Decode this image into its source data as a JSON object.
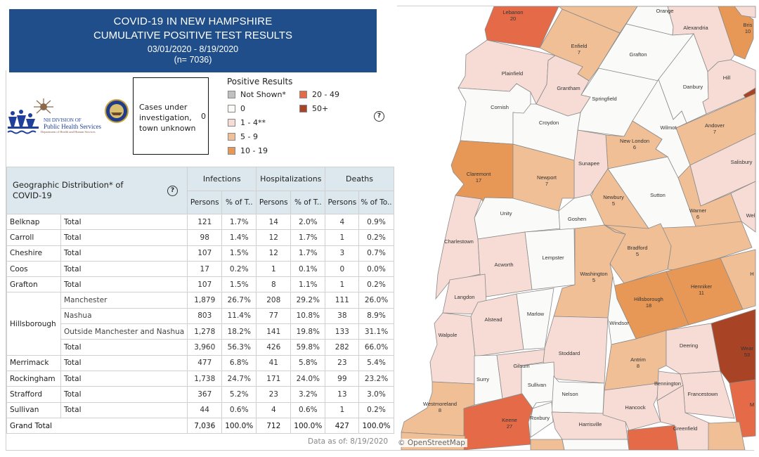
{
  "title": {
    "line1": "COVID-19 IN NEW HAMPSHIRE",
    "line2": "CUMULATIVE POSITIVE TEST RESULTS",
    "dates": "03/01/2020 - 8/19/2020",
    "n": "(n= 7036)",
    "background": "#1f4e8a"
  },
  "logo": {
    "line1": "NH DIVISION OF",
    "line2": "Public Health Services",
    "line3": "Department of Health and Human Services"
  },
  "investigation": {
    "label": "Cases under investigation, town unknown",
    "value": "0"
  },
  "legend": {
    "title": "Positive Results",
    "items": [
      {
        "label": "Not Shown*",
        "color": "#c0c0c0"
      },
      {
        "label": "0",
        "color": "#fafaf8"
      },
      {
        "label": "1 - 4**",
        "color": "#f7dcd5"
      },
      {
        "label": "5 - 9",
        "color": "#f0bf96"
      },
      {
        "label": "10 - 19",
        "color": "#e89856"
      },
      {
        "label": "20 - 49",
        "color": "#e56b48"
      },
      {
        "label": "50+",
        "color": "#a84326"
      }
    ]
  },
  "help_icon": "?",
  "table": {
    "title": "Geographic Distribution* of COVID-19",
    "groups": [
      "Infections",
      "Hospitalizations",
      "Deaths"
    ],
    "subheaders": [
      "Persons",
      "% of T..",
      "Persons",
      "% of T..",
      "Persons",
      "% of To.."
    ],
    "rows": [
      {
        "county": "Belknap",
        "sub": "Total",
        "v": [
          "121",
          "1.7%",
          "14",
          "2.0%",
          "4",
          "0.9%"
        ]
      },
      {
        "county": "Carroll",
        "sub": "Total",
        "v": [
          "98",
          "1.4%",
          "12",
          "1.7%",
          "1",
          "0.2%"
        ]
      },
      {
        "county": "Cheshire",
        "sub": "Total",
        "v": [
          "107",
          "1.5%",
          "12",
          "1.7%",
          "3",
          "0.7%"
        ]
      },
      {
        "county": "Coos",
        "sub": "Total",
        "v": [
          "17",
          "0.2%",
          "1",
          "0.1%",
          "0",
          "0.0%"
        ]
      },
      {
        "county": "Grafton",
        "sub": "Total",
        "v": [
          "107",
          "1.5%",
          "8",
          "1.1%",
          "1",
          "0.2%"
        ]
      },
      {
        "county": "Hillsborough",
        "span": 4,
        "sub": "Manchester",
        "v": [
          "1,879",
          "26.7%",
          "208",
          "29.2%",
          "111",
          "26.0%"
        ]
      },
      {
        "sub": "Nashua",
        "v": [
          "803",
          "11.4%",
          "77",
          "10.8%",
          "38",
          "8.9%"
        ]
      },
      {
        "sub": "Outside Manchester and Nashua",
        "v": [
          "1,278",
          "18.2%",
          "141",
          "19.8%",
          "133",
          "31.1%"
        ]
      },
      {
        "sub": "Total",
        "v": [
          "3,960",
          "56.3%",
          "426",
          "59.8%",
          "282",
          "66.0%"
        ]
      },
      {
        "county": "Merrimack",
        "sub": "Total",
        "v": [
          "477",
          "6.8%",
          "41",
          "5.8%",
          "23",
          "5.4%"
        ]
      },
      {
        "county": "Rockingham",
        "sub": "Total",
        "v": [
          "1,738",
          "24.7%",
          "171",
          "24.0%",
          "99",
          "23.2%"
        ]
      },
      {
        "county": "Strafford",
        "sub": "Total",
        "v": [
          "367",
          "5.2%",
          "23",
          "3.2%",
          "13",
          "3.0%"
        ]
      },
      {
        "county": "Sullivan",
        "sub": "Total",
        "v": [
          "44",
          "0.6%",
          "4",
          "0.6%",
          "1",
          "0.2%"
        ]
      }
    ],
    "grand_total": {
      "label": "Grand Total",
      "v": [
        "7,036",
        "100.0%",
        "712",
        "100.0%",
        "427",
        "100.0%"
      ]
    }
  },
  "data_as_of": "Data as of:  8/19/2020",
  "map": {
    "attribution": "© OpenStreetMap",
    "towns": [
      {
        "name": "Lebanon",
        "count": "20",
        "bin": 5
      },
      {
        "name": "",
        "bin": 3,
        "id": "canaan"
      },
      {
        "name": "Enfield",
        "count": "7",
        "bin": 3
      },
      {
        "name": "Orange",
        "bin": 1
      },
      {
        "name": "Alexandria",
        "bin": 2
      },
      {
        "name": "Bris",
        "count": "10",
        "bin": 4
      },
      {
        "name": "",
        "bin": 2,
        "id": "ne"
      },
      {
        "name": "Grafton",
        "bin": 1
      },
      {
        "name": "Plainfield",
        "bin": 2
      },
      {
        "name": "Grantham",
        "bin": 2
      },
      {
        "name": "Springfield",
        "bin": 1
      },
      {
        "name": "Danbury",
        "bin": 1
      },
      {
        "name": "Hill",
        "bin": 2
      },
      {
        "name": "",
        "bin": 6,
        "id": "dark1"
      },
      {
        "name": "Wilmot",
        "bin": 1
      },
      {
        "name": "Andover",
        "count": "7",
        "bin": 3
      },
      {
        "name": "Salisbury",
        "bin": 2
      },
      {
        "name": "",
        "bin": 3,
        "id": "mid"
      },
      {
        "name": "Warner",
        "count": "6",
        "bin": 3
      },
      {
        "name": "Wel",
        "bin": 2
      },
      {
        "name": "New London",
        "count": "6",
        "bin": 3
      },
      {
        "name": "Sutton",
        "bin": 1
      },
      {
        "name": "Sunapee",
        "bin": 2
      },
      {
        "name": "Newbury",
        "count": "5",
        "bin": 3
      },
      {
        "name": "Cornish",
        "bin": 1
      },
      {
        "name": "Croydon",
        "bin": 1
      },
      {
        "name": "Claremont",
        "count": "17",
        "bin": 4
      },
      {
        "name": "Newport",
        "count": "7",
        "bin": 3
      },
      {
        "name": "Unity",
        "bin": 1
      },
      {
        "name": "Goshen",
        "bin": 1
      },
      {
        "name": "Charlestown",
        "bin": 2
      },
      {
        "name": "Acworth",
        "bin": 2
      },
      {
        "name": "Lempster",
        "bin": 1
      },
      {
        "name": "Washington",
        "count": "5",
        "bin": 3
      },
      {
        "name": "Bradford",
        "count": "5",
        "bin": 3
      },
      {
        "name": "Hillsborough",
        "count": "18",
        "bin": 4
      },
      {
        "name": "Henniker",
        "count": "11",
        "bin": 4
      },
      {
        "name": "H",
        "bin": 3
      },
      {
        "name": "Langdon",
        "bin": 2
      },
      {
        "name": "Alstead",
        "bin": 2
      },
      {
        "name": "Marlow",
        "bin": 1
      },
      {
        "name": "Walpole",
        "bin": 2
      },
      {
        "name": "Stoddard",
        "bin": 2
      },
      {
        "name": "Windsor",
        "bin": 1
      },
      {
        "name": "Antrim",
        "count": "8",
        "bin": 3
      },
      {
        "name": "Deering",
        "bin": 2
      },
      {
        "name": "Wear",
        "count": "53",
        "bin": 6
      },
      {
        "name": "Surry",
        "bin": 1
      },
      {
        "name": "Gilsum",
        "bin": 2
      },
      {
        "name": "Sullivan",
        "bin": 1
      },
      {
        "name": "Nelson",
        "bin": 1
      },
      {
        "name": "Westmoreland",
        "count": "8",
        "bin": 3
      },
      {
        "name": "Keene",
        "count": "27",
        "bin": 5
      },
      {
        "name": "Roxbury",
        "bin": 1
      },
      {
        "name": "Harrisville",
        "bin": 2
      },
      {
        "name": "Hancock",
        "bin": 2
      },
      {
        "name": "Bennington",
        "bin": 2
      },
      {
        "name": "Francestown",
        "bin": 2
      },
      {
        "name": "Greenfield",
        "bin": 2
      },
      {
        "name": "",
        "bin": 5,
        "id": "red2"
      },
      {
        "name": "M",
        "bin": 5
      },
      {
        "name": "",
        "bin": 3,
        "id": "b1"
      },
      {
        "name": "",
        "bin": 3,
        "id": "b2"
      },
      {
        "name": "",
        "bin": 1,
        "id": "b3"
      },
      {
        "name": "",
        "bin": 3,
        "id": "b4"
      }
    ]
  }
}
